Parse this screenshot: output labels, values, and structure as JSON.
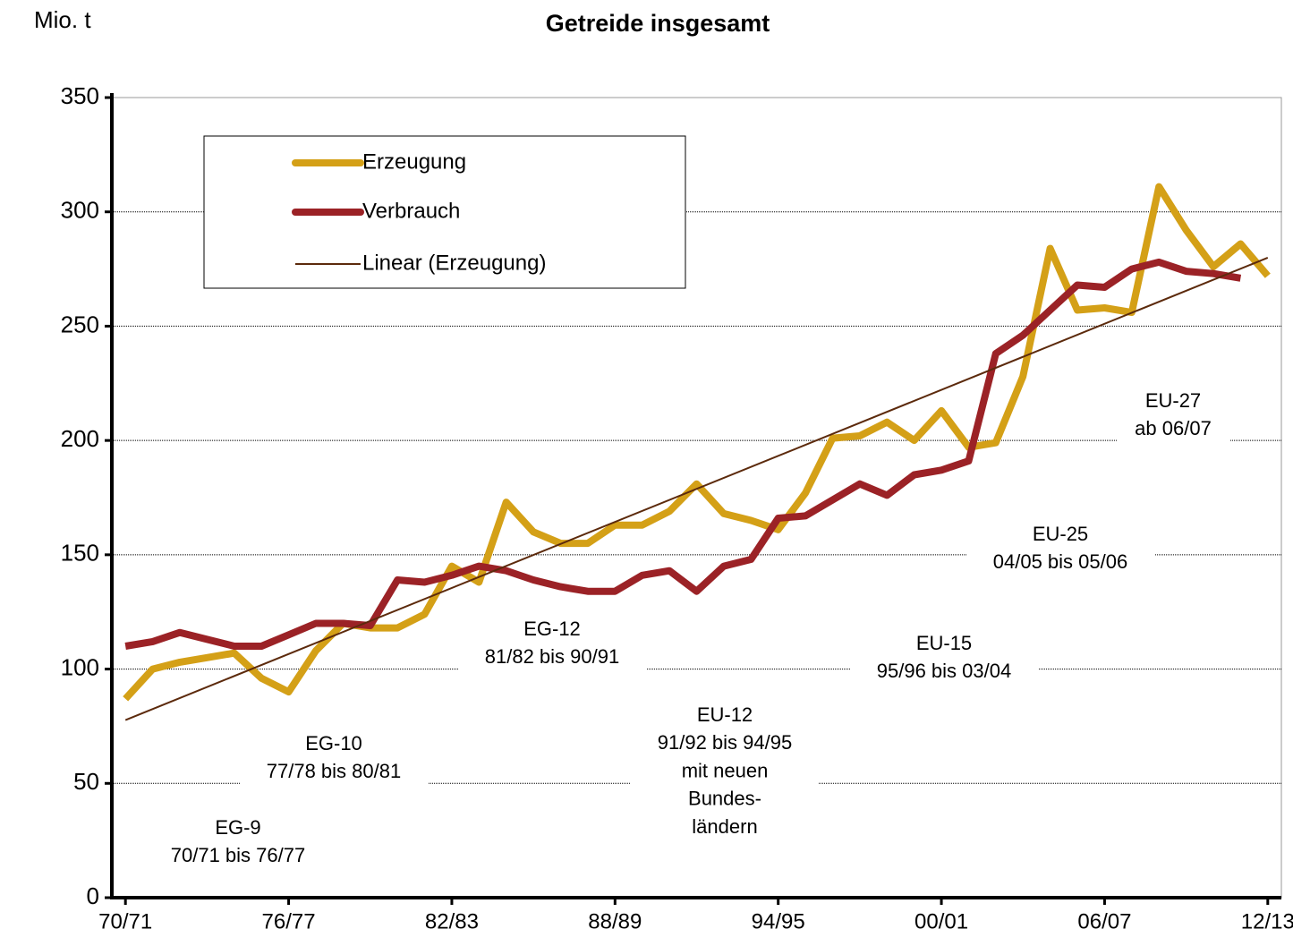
{
  "chart_data": {
    "type": "line",
    "title": "Getreide insgesamt",
    "y_axis_label": "Mio. t",
    "categories": [
      "70/71",
      null,
      null,
      null,
      null,
      null,
      "76/77",
      null,
      null,
      null,
      null,
      null,
      "82/83",
      null,
      null,
      null,
      null,
      null,
      "88/89",
      null,
      null,
      null,
      null,
      null,
      "94/95",
      null,
      null,
      null,
      null,
      null,
      "00/01",
      null,
      null,
      null,
      null,
      null,
      "06/07",
      null,
      null,
      null,
      null,
      null,
      "12/13"
    ],
    "series": [
      {
        "name": "Erzeugung",
        "color": "#d4a017",
        "values": [
          87,
          100,
          103,
          105,
          107,
          96,
          90,
          108,
          120,
          118,
          118,
          124,
          145,
          138,
          173,
          160,
          155,
          155,
          163,
          163,
          169,
          181,
          168,
          165,
          161,
          177,
          201,
          202,
          208,
          200,
          213,
          197,
          199,
          228,
          284,
          257,
          258,
          256,
          311,
          292,
          276,
          286,
          272
        ]
      },
      {
        "name": "Verbrauch",
        "color": "#9b2226",
        "values": [
          110,
          112,
          116,
          113,
          110,
          110,
          115,
          120,
          120,
          119,
          139,
          138,
          141,
          145,
          143,
          139,
          136,
          134,
          134,
          141,
          143,
          134,
          145,
          148,
          166,
          167,
          174,
          181,
          176,
          185,
          187,
          191,
          238,
          246,
          257,
          268,
          267,
          275,
          278,
          274,
          273,
          271,
          null
        ]
      },
      {
        "name": "Linear (Erzeugung)",
        "color": "#5c2a0c",
        "trend": "linear"
      }
    ],
    "annotations": [
      [
        "EG-9",
        "70/71 bis 76/77"
      ],
      [
        "EG-10",
        "77/78 bis 80/81"
      ],
      [
        "EG-12",
        "81/82 bis 90/91"
      ],
      [
        "EU-12",
        "91/92 bis 94/95",
        "mit neuen",
        "Bundes-",
        "ländern"
      ],
      [
        "EU-15",
        "95/96 bis 03/04"
      ],
      [
        "EU-25",
        "04/05 bis 05/06"
      ],
      [
        "EU-27",
        "ab 06/07"
      ]
    ],
    "ylim": [
      0,
      350
    ],
    "yticks": [
      0,
      50,
      100,
      150,
      200,
      250,
      300,
      350
    ],
    "grid": true
  }
}
